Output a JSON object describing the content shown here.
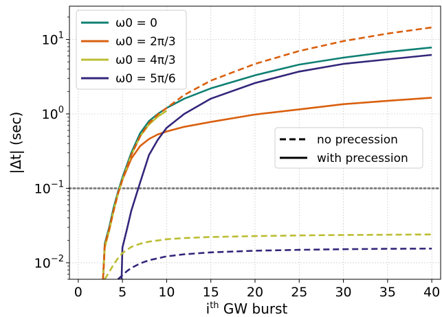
{
  "chart_data": {
    "type": "line",
    "title": "",
    "xlabel": "ith GW burst",
    "xlabel_parts": {
      "base": "i",
      "sup": "th",
      "rest": " GW burst"
    },
    "ylabel": "|Δt| (sec)",
    "xlim": [
      -1,
      41
    ],
    "ylim": [
      0.006,
      28
    ],
    "yscale": "log",
    "grid": true,
    "x_ticks": [
      0,
      5,
      10,
      15,
      20,
      25,
      30,
      35,
      40
    ],
    "x_tick_labels": [
      "0",
      "5",
      "10",
      "15",
      "20",
      "25",
      "30",
      "35",
      "40"
    ],
    "y_ticks": [
      0.01,
      0.1,
      1,
      10
    ],
    "y_tick_labels": [
      {
        "base": "10",
        "exp": "−2"
      },
      {
        "base": "10",
        "exp": "−1"
      },
      {
        "base": "10",
        "exp": "0"
      },
      {
        "base": "10",
        "exp": "1"
      }
    ],
    "reference_line": {
      "y": 0.1,
      "style": "dotted",
      "color": "#808080"
    },
    "legend_colors": {
      "placement": "top-left",
      "entries": [
        {
          "label": "ω0 = 0",
          "color": "#0e8073"
        },
        {
          "label": "ω0 = 2π/3",
          "color": "#d95f0e"
        },
        {
          "label": "ω0 = 4π/3",
          "color": "#bcbd32"
        },
        {
          "label": "ω0 = 5π/6",
          "color": "#32267a"
        }
      ]
    },
    "legend_styles": {
      "placement": "center-right",
      "entries": [
        {
          "label": "no precession",
          "style": "dashed"
        },
        {
          "label": "with precession",
          "style": "solid"
        }
      ]
    },
    "series": [
      {
        "color": "#0e8073",
        "style": "solid",
        "x": [
          2.8,
          3.0,
          3.5,
          4.0,
          4.5,
          5.0,
          6.0,
          7.0,
          8.0,
          9.0,
          10.0,
          12.0,
          15.0,
          20.0,
          25.0,
          30.0,
          35.0,
          40.0
        ],
        "y": [
          0.006,
          0.018,
          0.03,
          0.055,
          0.09,
          0.14,
          0.3,
          0.55,
          0.8,
          1.0,
          1.2,
          1.6,
          2.2,
          3.3,
          4.6,
          5.7,
          6.8,
          7.8
        ]
      },
      {
        "color": "#d95f0e",
        "style": "solid",
        "x": [
          2.8,
          3.0,
          3.5,
          4.0,
          4.5,
          5.0,
          6.0,
          7.0,
          8.0,
          9.0,
          10.0,
          12.0,
          15.0,
          20.0,
          25.0,
          30.0,
          35.0,
          40.0
        ],
        "y": [
          0.006,
          0.017,
          0.028,
          0.05,
          0.085,
          0.13,
          0.25,
          0.37,
          0.46,
          0.53,
          0.58,
          0.67,
          0.78,
          0.98,
          1.15,
          1.35,
          1.5,
          1.65
        ]
      },
      {
        "color": "#bcbd32",
        "style": "solid",
        "x": [
          2.8,
          3.0,
          3.5,
          4.0,
          4.5,
          5.0,
          6.0,
          7.0,
          8.0,
          9.0,
          10.0
        ],
        "y": [
          0.006,
          0.016,
          0.027,
          0.05,
          0.085,
          0.13,
          0.28,
          0.5,
          0.72,
          0.92,
          1.1
        ]
      },
      {
        "color": "#32267a",
        "style": "solid",
        "x": [
          4.9,
          5.0,
          5.5,
          6.0,
          7.0,
          8.0,
          9.0,
          10.0,
          12.0,
          15.0,
          20.0,
          25.0,
          30.0,
          35.0,
          40.0
        ],
        "y": [
          0.006,
          0.016,
          0.028,
          0.05,
          0.12,
          0.28,
          0.45,
          0.65,
          1.0,
          1.6,
          2.6,
          3.7,
          4.7,
          5.4,
          6.2
        ]
      },
      {
        "color": "#d95f0e",
        "style": "dashed",
        "x": [
          2.8,
          3.0,
          3.5,
          4.0,
          4.5,
          5.0,
          6.0,
          7.0,
          8.0,
          9.0,
          10.0,
          12.0,
          15.0,
          20.0,
          25.0,
          30.0,
          35.0,
          40.0
        ],
        "y": [
          0.006,
          0.017,
          0.028,
          0.05,
          0.085,
          0.13,
          0.28,
          0.5,
          0.75,
          0.98,
          1.2,
          1.8,
          2.8,
          4.7,
          7.0,
          9.5,
          12.0,
          14.5
        ]
      },
      {
        "color": "#bcbd32",
        "style": "dashed",
        "x": [
          3.0,
          3.5,
          4.0,
          4.5,
          5.0,
          6.0,
          7.0,
          8.0,
          10.0,
          12.0,
          15.0,
          20.0,
          25.0,
          30.0,
          35.0,
          40.0
        ],
        "y": [
          0.006,
          0.0075,
          0.0095,
          0.0115,
          0.0135,
          0.0163,
          0.018,
          0.0192,
          0.0207,
          0.0215,
          0.0222,
          0.0228,
          0.0233,
          0.0236,
          0.0238,
          0.024
        ]
      },
      {
        "color": "#32267a",
        "style": "dashed",
        "x": [
          4.5,
          5.0,
          5.5,
          6.0,
          7.0,
          8.0,
          10.0,
          12.0,
          15.0,
          20.0,
          25.0,
          30.0,
          35.0,
          40.0
        ],
        "y": [
          0.006,
          0.0068,
          0.0077,
          0.0085,
          0.0098,
          0.0108,
          0.0122,
          0.013,
          0.0138,
          0.0145,
          0.0149,
          0.0152,
          0.0154,
          0.0155
        ]
      }
    ]
  }
}
